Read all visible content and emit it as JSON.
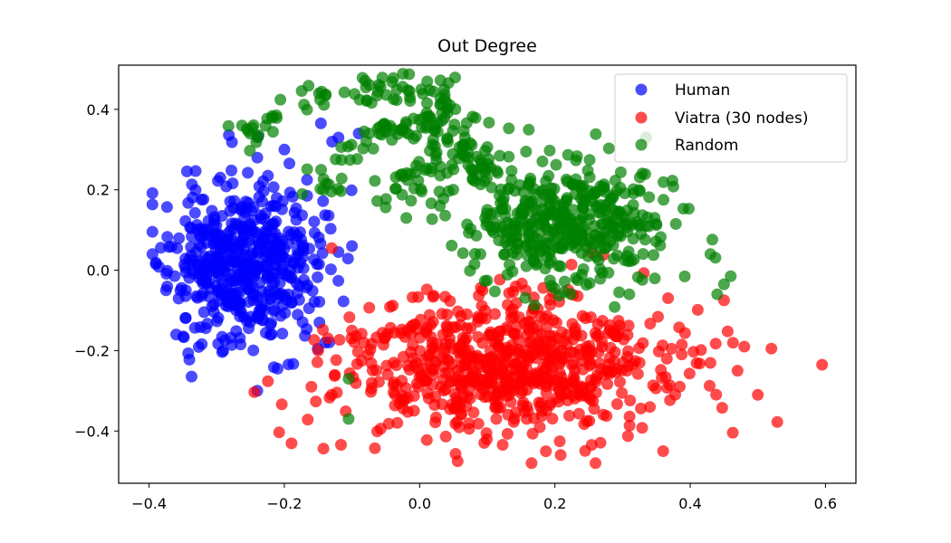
{
  "chart_data": {
    "type": "scatter",
    "title": "Out Degree",
    "xlabel": "",
    "ylabel": "",
    "xlim": [
      -0.445,
      0.645
    ],
    "ylim": [
      -0.53,
      0.51
    ],
    "xticks": [
      -0.4,
      -0.2,
      0.0,
      0.2,
      0.4,
      0.6
    ],
    "xtick_labels": [
      "−0.4",
      "−0.2",
      "0.0",
      "0.2",
      "0.4",
      "0.6"
    ],
    "yticks": [
      0.4,
      0.2,
      0.0,
      -0.2,
      -0.4
    ],
    "ytick_labels": [
      "0.4",
      "0.2",
      "0.0",
      "−0.2",
      "−0.4"
    ],
    "grid": false,
    "legend_position": "top-right",
    "marker_alpha": 0.7,
    "series": [
      {
        "name": "Human",
        "color": "#0000ff",
        "center": [
          -0.26,
          0.02
        ],
        "spread": [
          0.055,
          0.1
        ],
        "count": 520,
        "seed": 11,
        "extra_points": [
          [
            -0.395,
            0.04
          ],
          [
            -0.39,
            0.015
          ],
          [
            -0.375,
            -0.05
          ],
          [
            -0.24,
            -0.3
          ],
          [
            -0.21,
            -0.245
          ],
          [
            -0.1,
            0.06
          ],
          [
            -0.09,
            0.34
          ],
          [
            -0.12,
            0.33
          ],
          [
            -0.2,
            0.3
          ],
          [
            -0.24,
            0.28
          ],
          [
            -0.36,
            -0.16
          ]
        ]
      },
      {
        "name": "Viatra (30 nodes)",
        "color": "#ff0000",
        "center": [
          0.12,
          -0.24
        ],
        "spread": [
          0.12,
          0.085
        ],
        "count": 700,
        "seed": 23,
        "extra_points": [
          [
            0.595,
            -0.235
          ],
          [
            0.52,
            -0.195
          ],
          [
            0.5,
            -0.31
          ],
          [
            0.48,
            -0.19
          ],
          [
            0.47,
            -0.25
          ],
          [
            0.45,
            -0.075
          ],
          [
            -0.16,
            -0.29
          ],
          [
            -0.15,
            -0.2
          ],
          [
            -0.13,
            0.055
          ],
          [
            -0.1,
            -0.15
          ],
          [
            0.26,
            -0.48
          ],
          [
            0.36,
            -0.45
          ],
          [
            -0.13,
            -0.31
          ]
        ]
      },
      {
        "name": "Random",
        "color": "#008000",
        "center": [
          0.22,
          0.12
        ],
        "spread": [
          0.075,
          0.075
        ],
        "count": 420,
        "seed": 37,
        "extra_points": [
          [
            0.46,
            -0.015
          ],
          [
            0.45,
            -0.035
          ],
          [
            0.44,
            -0.06
          ],
          [
            0.43,
            0.04
          ],
          [
            0.31,
            -0.06
          ],
          [
            0.295,
            -0.055
          ],
          [
            -0.105,
            -0.27
          ],
          [
            -0.105,
            -0.37
          ],
          [
            0.1,
            0.15
          ],
          [
            0.09,
            0.04
          ],
          [
            0.03,
            0.16
          ]
        ],
        "arc": {
          "count": 230,
          "seed": 53,
          "path": [
            [
              -0.255,
              0.32
            ],
            [
              -0.21,
              0.38
            ],
            [
              -0.15,
              0.43
            ],
            [
              -0.07,
              0.455
            ],
            [
              -0.02,
              0.46
            ],
            [
              0.03,
              0.44
            ],
            [
              0.05,
              0.37
            ],
            [
              0.07,
              0.31
            ],
            [
              0.08,
              0.24
            ],
            [
              0.1,
              0.22
            ]
          ],
          "inner_path": [
            [
              -0.16,
              0.2
            ],
            [
              -0.12,
              0.27
            ],
            [
              -0.07,
              0.33
            ],
            [
              -0.02,
              0.37
            ],
            [
              0.02,
              0.36
            ],
            [
              0.04,
              0.25
            ],
            [
              -0.03,
              0.23
            ],
            [
              -0.05,
              0.14
            ]
          ],
          "jitter": 0.018
        }
      }
    ]
  }
}
